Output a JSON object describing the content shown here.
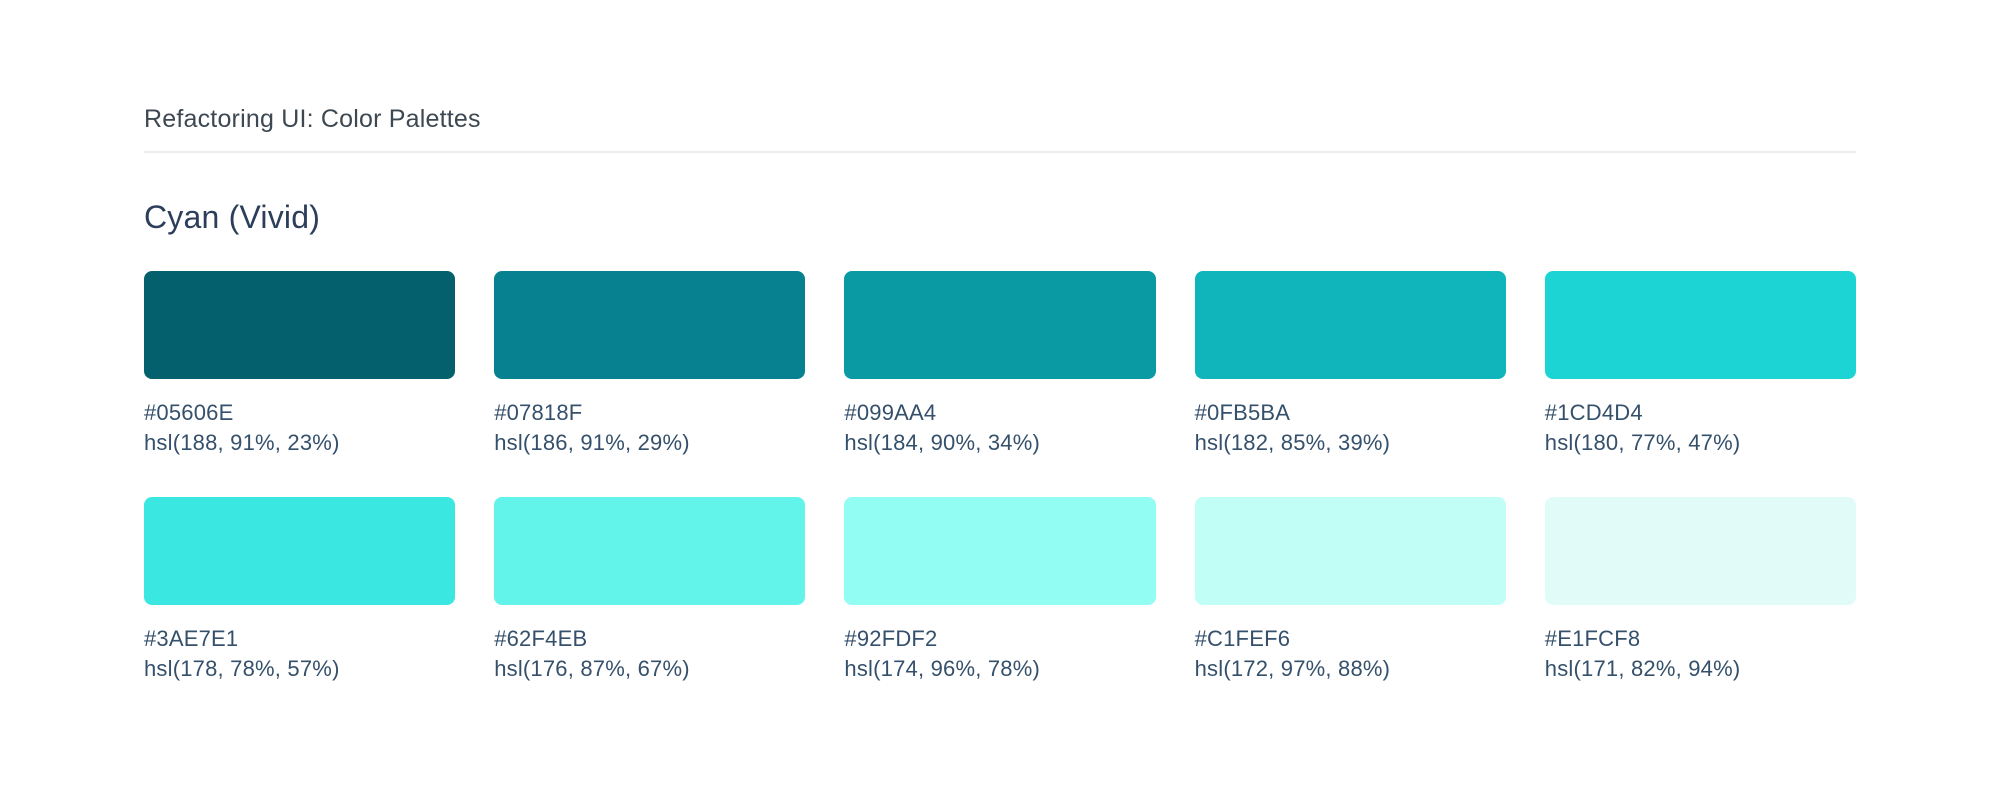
{
  "header": {
    "title": "Refactoring UI: Color Palettes"
  },
  "palette": {
    "name": "Cyan (Vivid)",
    "swatches": [
      {
        "hex": "#05606E",
        "hsl": "hsl(188, 91%, 23%)"
      },
      {
        "hex": "#07818F",
        "hsl": "hsl(186, 91%, 29%)"
      },
      {
        "hex": "#099AA4",
        "hsl": "hsl(184, 90%, 34%)"
      },
      {
        "hex": "#0FB5BA",
        "hsl": "hsl(182, 85%, 39%)"
      },
      {
        "hex": "#1CD4D4",
        "hsl": "hsl(180, 77%, 47%)"
      },
      {
        "hex": "#3AE7E1",
        "hsl": "hsl(178, 78%, 57%)"
      },
      {
        "hex": "#62F4EB",
        "hsl": "hsl(176, 87%, 67%)"
      },
      {
        "hex": "#92FDF2",
        "hsl": "hsl(174, 96%, 78%)"
      },
      {
        "hex": "#C1FEF6",
        "hsl": "hsl(172, 97%, 88%)"
      },
      {
        "hex": "#E1FCF8",
        "hsl": "hsl(171, 82%, 94%)"
      }
    ]
  },
  "colors": {
    "header_text": "#3D4852",
    "section_title_text": "#2C3E5A",
    "label_text": "#35506B",
    "divider": "#ECEDEE",
    "background": "#FFFFFF"
  }
}
